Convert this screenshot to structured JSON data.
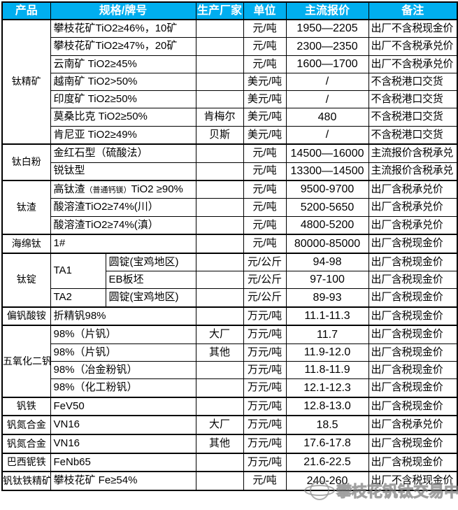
{
  "colors": {
    "header_bg": "#00AEEF",
    "header_text": "#FFFFFF",
    "border": "#000000",
    "watermark_gray": "#8C8C8C"
  },
  "watermark": {
    "text": "攀枝花钒钛交易中心"
  },
  "table": {
    "headers": [
      {
        "label": "产品",
        "colspan": 1
      },
      {
        "label": "规格/牌号",
        "colspan": 2
      },
      {
        "label": "生产厂家",
        "colspan": 1
      },
      {
        "label": "单位",
        "colspan": 1
      },
      {
        "label": "主流报价",
        "colspan": 1
      },
      {
        "label": "备注",
        "colspan": 1
      }
    ],
    "rows": [
      {
        "product": "钛精矿",
        "pspan": 7,
        "spec": "攀枝花矿TiO2≥46%，10矿",
        "maker": "",
        "unit": "元/吨",
        "price": "1950—2205",
        "note": "出厂不含税现金价"
      },
      {
        "spec": "攀枝花矿TiO2≥47%，20矿",
        "maker": "",
        "unit": "元/吨",
        "price": "2300—2350",
        "note": "出厂不含税承兑价"
      },
      {
        "spec": "云南矿 TiO2≥45%",
        "maker": "",
        "unit": "元/吨",
        "price": "1600—1700",
        "note": "出厂不含税承兑价"
      },
      {
        "spec": "越南矿 TiO2>50%",
        "maker": "",
        "unit": "美元/吨",
        "price": "/",
        "note": "不含税港口交货"
      },
      {
        "spec": "印度矿 TiO2≥50%",
        "maker": "",
        "unit": "美元/吨",
        "price": "/",
        "note": "不含税港口交货"
      },
      {
        "spec": "莫桑比克 TiO2≥50%",
        "maker": "肯梅尔",
        "unit": "美元/吨",
        "price": "480",
        "note": "不含税港口交货"
      },
      {
        "spec": "肯尼亚 TiO2≥49%",
        "maker": "贝斯",
        "unit": "美元/吨",
        "price": "/",
        "note": "不含税港口交货"
      },
      {
        "product": "钛白粉",
        "pspan": 2,
        "spec": "金红石型（硫酸法）",
        "maker": "",
        "unit": "元/吨",
        "price": "14500—16000",
        "note": "主流报价含税承兑"
      },
      {
        "spec": "锐钛型",
        "maker": "",
        "unit": "元/吨",
        "price": "13300—14500",
        "note": "主流报价含税承兑"
      },
      {
        "product": "钛渣",
        "pspan": 3,
        "parts": [
          {
            "t": "高钛渣"
          },
          {
            "t": "（普通钙镁）",
            "small": true
          },
          {
            "t": "TiO2 ≥90%"
          }
        ],
        "maker": "",
        "unit": "元/吨",
        "price": "9500-9700",
        "note": "出厂含税承兑价"
      },
      {
        "spec": "酸溶渣TiO2≥74%(川）",
        "maker": "",
        "unit": "元/吨",
        "price": "5200-5650",
        "note": "出厂含税承兑价"
      },
      {
        "spec": "酸溶渣TiO2≥74%(滇）",
        "maker": "",
        "unit": "元/吨",
        "price": "4800-5200",
        "note": "出厂含税承兑价"
      },
      {
        "product": "海绵钛",
        "pspan": 1,
        "spec": "1#",
        "maker": "",
        "unit": "元/吨",
        "price": "80000-85000",
        "note": "出厂含税现金价"
      },
      {
        "product": "钛锭",
        "pspan": 3,
        "spec2": [
          {
            "t": "TA1",
            "span": 2
          },
          {
            "t": "圆锭(宝鸡地区)"
          }
        ],
        "maker": "",
        "unit": "元/公斤",
        "price": "94-98",
        "note": "出厂含税现金价"
      },
      {
        "spec2": [
          null,
          {
            "t": "EB板坯"
          }
        ],
        "maker": "",
        "unit": "元/公斤",
        "price": "97-100",
        "note": "出厂含税现金价"
      },
      {
        "spec2": [
          {
            "t": "TA2"
          },
          {
            "t": "圆锭(宝鸡地区)"
          }
        ],
        "maker": "",
        "unit": "元/公斤",
        "price": "89-93",
        "note": "出厂含税现金价"
      },
      {
        "product": "偏钒酸铵",
        "pspan": 1,
        "spec": "折精钒98%",
        "maker": "",
        "unit": "万元/吨",
        "price": "11.1-11.3",
        "note": "出厂含税现金价"
      },
      {
        "product": "五氧化二钒",
        "pspan": 4,
        "spec": "98%（片钒）",
        "maker": "大厂",
        "unit": "万元/吨",
        "price": "11.7",
        "note": "出厂含税现金价"
      },
      {
        "spec": "98%（片钒）",
        "maker": "其他",
        "unit": "万元/吨",
        "price": "11.9-12.0",
        "note": "出厂含税现金价"
      },
      {
        "spec": "98%（冶金粉钒）",
        "maker": "",
        "unit": "万元/吨",
        "price": "11.8-11.9",
        "note": "出厂含税现金价"
      },
      {
        "spec": "98%（化工粉钒）",
        "maker": "",
        "unit": "万元/吨",
        "price": "12.1-12.3",
        "note": "出厂含税现金价"
      },
      {
        "product": "钒铁",
        "pspan": 1,
        "spec": "FeV50",
        "maker": "",
        "unit": "万元/吨",
        "price": "12.8-13.0",
        "note": "出厂含税现金价"
      },
      {
        "product": "钒氮合金",
        "pspan": 1,
        "spec": "VN16",
        "maker": "大厂",
        "unit": "万元/吨",
        "price": "18.5",
        "note": "出厂含税承兑价"
      },
      {
        "product": "钒氮合金",
        "pspan": 1,
        "spec": "VN16",
        "maker": "其他",
        "unit": "万元/吨",
        "price": "17.6-17.8",
        "note": "出厂含税现金价"
      },
      {
        "product": "巴西铌铁",
        "pspan": 1,
        "spec": "FeNb65",
        "maker": "",
        "unit": "万元/吨",
        "price": "21.6-22.5",
        "note": "出厂含税现金价"
      },
      {
        "product": "钒钛铁精矿",
        "pspan": 1,
        "spec": "攀枝花矿 Fe≥54%",
        "maker": "",
        "unit": "元/吨",
        "price": "240-260",
        "note": "出厂不含税现金价"
      }
    ]
  }
}
